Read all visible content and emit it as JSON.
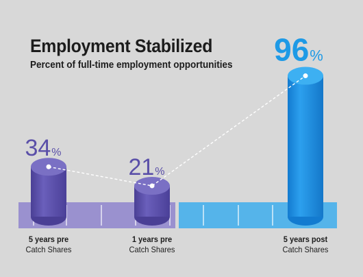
{
  "header": {
    "title": "Employment Stabilized",
    "subtitle": "Percent of full-time employment opportunities"
  },
  "chart_data": {
    "type": "bar",
    "title": "Employment Stabilized",
    "subtitle": "Percent of full-time employment opportunities",
    "categories": [
      {
        "line1": "5 years pre",
        "line2": "Catch Shares"
      },
      {
        "line1": "1 years pre",
        "line2": "Catch Shares"
      },
      {
        "line1": "5 years post",
        "line2": "Catch Shares"
      }
    ],
    "values": [
      34,
      21,
      96
    ],
    "value_labels": [
      "34",
      "21",
      "96"
    ],
    "unit": "%",
    "colors": {
      "pre": "#5a4fa8",
      "pre_band": "#9a91cf",
      "post": "#1e8fe0",
      "post_band": "#55b4ea",
      "value_pre": "#5a4fa8",
      "value_post": "#1e9ae6"
    },
    "ylim": [
      0,
      100
    ],
    "grid": false,
    "legend": "none"
  }
}
